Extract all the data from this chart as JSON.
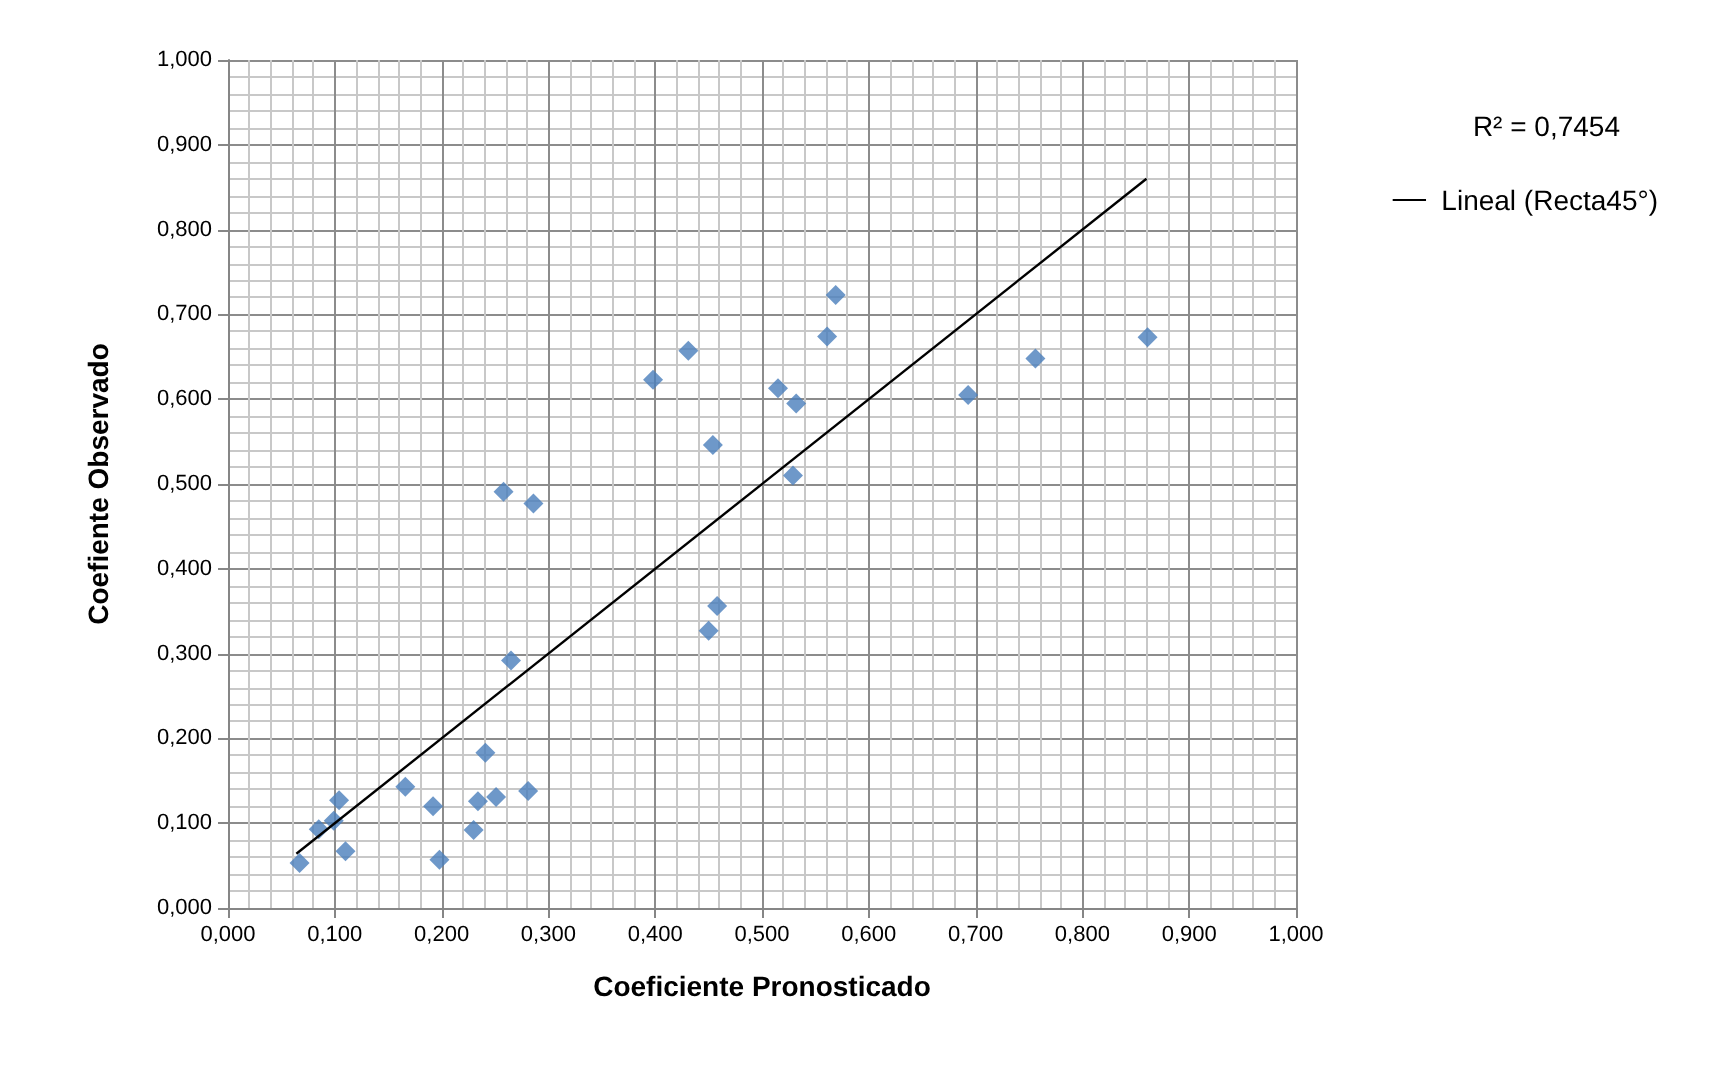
{
  "chart_data": {
    "type": "scatter",
    "xlabel": "Coeficiente Pronosticado",
    "ylabel": "Coefiente Observado",
    "annotations": [
      "R² = 0,7454"
    ],
    "xlim": [
      0,
      1
    ],
    "ylim": [
      0,
      1
    ],
    "xticks": [
      {
        "value": 0,
        "label": "0,000"
      },
      {
        "value": 0.1,
        "label": "0,100"
      },
      {
        "value": 0.2,
        "label": "0,200"
      },
      {
        "value": 0.3,
        "label": "0,300"
      },
      {
        "value": 0.4,
        "label": "0,400"
      },
      {
        "value": 0.5,
        "label": "0,500"
      },
      {
        "value": 0.6,
        "label": "0,600"
      },
      {
        "value": 0.7,
        "label": "0,700"
      },
      {
        "value": 0.8,
        "label": "0,800"
      },
      {
        "value": 0.9,
        "label": "0,900"
      },
      {
        "value": 1,
        "label": "1,000"
      }
    ],
    "yticks": [
      {
        "value": 0,
        "label": "0,000"
      },
      {
        "value": 0.1,
        "label": "0,100"
      },
      {
        "value": 0.2,
        "label": "0,200"
      },
      {
        "value": 0.3,
        "label": "0,300"
      },
      {
        "value": 0.4,
        "label": "0,400"
      },
      {
        "value": 0.5,
        "label": "0,500"
      },
      {
        "value": 0.6,
        "label": "0,600"
      },
      {
        "value": 0.7,
        "label": "0,700"
      },
      {
        "value": 0.8,
        "label": "0,800"
      },
      {
        "value": 0.9,
        "label": "0,900"
      },
      {
        "value": 1,
        "label": "1,000"
      }
    ],
    "grid": true,
    "legend": "right",
    "marker": "diamond",
    "series": [
      {
        "color": "#4a7ebb",
        "x": [
          0.067,
          0.085,
          0.099,
          0.104,
          0.11,
          0.166,
          0.192,
          0.198,
          0.23,
          0.234,
          0.241,
          0.251,
          0.281,
          0.258,
          0.286,
          0.265,
          0.398,
          0.431,
          0.454,
          0.458,
          0.45,
          0.515,
          0.532,
          0.529,
          0.561,
          0.569,
          0.861,
          0.756,
          0.693
        ],
        "values": [
          0.053,
          0.093,
          0.103,
          0.127,
          0.067,
          0.143,
          0.12,
          0.057,
          0.092,
          0.126,
          0.183,
          0.131,
          0.138,
          0.491,
          0.477,
          0.292,
          0.623,
          0.657,
          0.546,
          0.356,
          0.327,
          0.613,
          0.595,
          0.51,
          0.674,
          0.723,
          0.673,
          0.648,
          0.605
        ]
      },
      {
        "type": "line",
        "name": "Lineal (Recta45°)",
        "color": "#000000",
        "line_style": "solid",
        "marker": "none",
        "x": [
          0.064,
          0.86
        ],
        "values": [
          0.064,
          0.86
        ]
      }
    ]
  }
}
